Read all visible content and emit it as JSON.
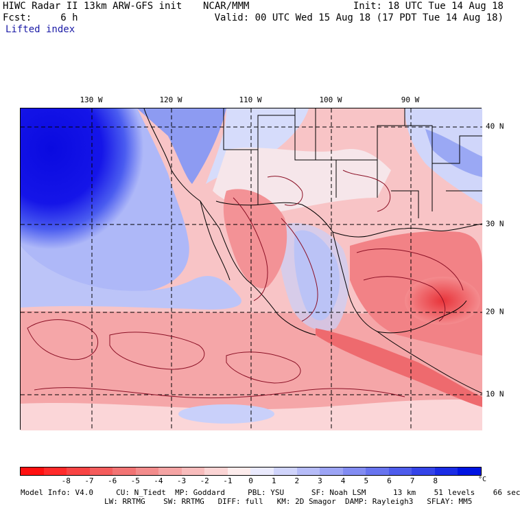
{
  "header": {
    "title": "HIWC Radar II 13km ARW-GFS init",
    "fcst": "Fcst:     6 h",
    "field": "Lifted index",
    "org": "NCAR/MMM",
    "init": "Init: 18 UTC Tue 14 Aug 18",
    "valid": "Valid: 00 UTC Wed 15 Aug 18 (17 PDT Tue 14 Aug 18)"
  },
  "map": {
    "lon_labels": [
      "130 W",
      "120 W",
      "110 W",
      "100 W",
      "90 W"
    ],
    "lat_labels": [
      "40 N",
      "30 N",
      "20 N",
      "10 N"
    ],
    "colors": {
      "ocean_stable": "#1515e8",
      "stable_mid": "#6f7ff0",
      "stable_light": "#c9d0fa",
      "neutral": "#fde8ea",
      "unstable_light": "#f8b6b8",
      "unstable_mid": "#f48b8e",
      "unstable_strong": "#ee5a5e",
      "contour": "#8a0f24",
      "borders": "#000000"
    }
  },
  "colorbar": {
    "labels": [
      "-8",
      "-7",
      "-6",
      "-5",
      "-4",
      "-3",
      "-2",
      "-1",
      "0",
      "1",
      "2",
      "3",
      "4",
      "5",
      "6",
      "7",
      "8"
    ],
    "unit": "°C",
    "colors": [
      "#ff1010",
      "#ff2a2a",
      "#f84444",
      "#f45c5c",
      "#f27474",
      "#f38c8c",
      "#f5a4a4",
      "#f8bcbc",
      "#fbd4d4",
      "#fdecec",
      "#eaeafd",
      "#d0d4fb",
      "#b6bcf8",
      "#9ca4f5",
      "#828cf2",
      "#6874ef",
      "#4e5cec",
      "#3444e8",
      "#1a2ce5",
      "#0014e2"
    ]
  },
  "footer": {
    "line1": "Model Info: V4.0     CU: N_Tiedt  MP: Goddard     PBL: YSU      SF: Noah LSM      13 km    51 levels    66 sec",
    "line2": "LW: RRTMG    SW: RRTMG   DIFF: full   KM: 2D Smagor  DAMP: Rayleigh3   SFLAY: MM5"
  }
}
